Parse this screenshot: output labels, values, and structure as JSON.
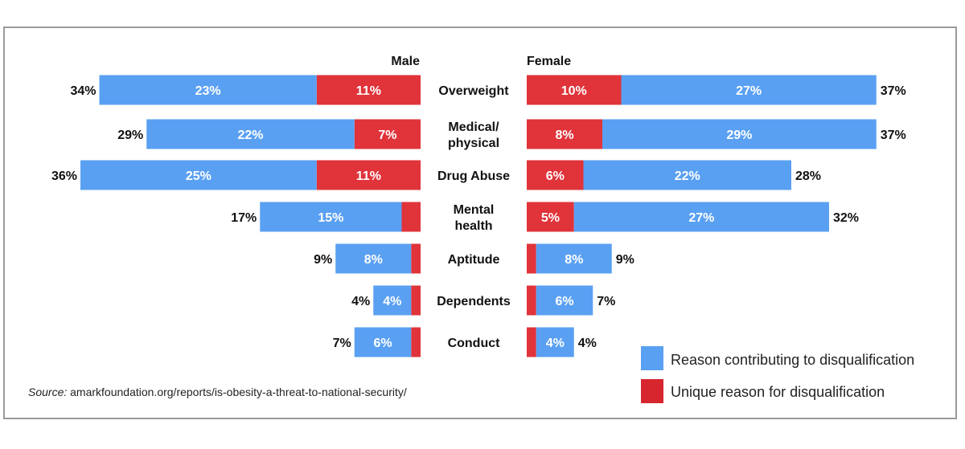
{
  "chart_data": {
    "type": "bar",
    "categories": [
      "Overweight",
      "Medical/ physical",
      "Drug Abuse",
      "Mental health",
      "Aptitude",
      "Dependents",
      "Conduct"
    ],
    "category_lines": [
      [
        "Overweight"
      ],
      [
        "Medical/",
        "physical"
      ],
      [
        "Drug Abuse"
      ],
      [
        "Mental",
        "health"
      ],
      [
        "Aptitude"
      ],
      [
        "Dependents"
      ],
      [
        "Conduct"
      ]
    ],
    "groups": [
      {
        "name": "Male",
        "totals": [
          34,
          29,
          36,
          17,
          9,
          4,
          7
        ],
        "total_labels": [
          "34%",
          "29%",
          "36%",
          "17%",
          "9%",
          "4%",
          "7%"
        ],
        "series": [
          {
            "name": "Reason contributing to disqualification",
            "values": [
              23,
              22,
              25,
              15,
              8,
              4,
              6
            ],
            "labels": [
              "23%",
              "22%",
              "25%",
              "15%",
              "8%",
              "4%",
              "6%"
            ]
          },
          {
            "name": "Unique reason for disqualification",
            "values": [
              11,
              7,
              11,
              2,
              1,
              1,
              1
            ],
            "labels": [
              "11%",
              "7%",
              "11%",
              "",
              "",
              "",
              ""
            ]
          }
        ]
      },
      {
        "name": "Female",
        "totals": [
          37,
          37,
          28,
          32,
          9,
          7,
          4
        ],
        "total_labels": [
          "37%",
          "37%",
          "28%",
          "32%",
          "9%",
          "7%",
          "4%"
        ],
        "series": [
          {
            "name": "Reason contributing to disqualification",
            "values": [
              27,
              29,
              22,
              27,
              8,
              6,
              4
            ],
            "labels": [
              "27%",
              "29%",
              "22%",
              "27%",
              "8%",
              "6%",
              "4%"
            ]
          },
          {
            "name": "Unique reason for disqualification",
            "values": [
              10,
              8,
              6,
              5,
              1,
              1,
              1
            ],
            "labels": [
              "10%",
              "8%",
              "6%",
              "5%",
              "",
              "",
              ""
            ]
          }
        ]
      }
    ],
    "legend": {
      "placement": "bottom-right",
      "items": [
        {
          "label": "Reason contributing to disqualification",
          "color": "#5aa0f2"
        },
        {
          "label": "Unique reason for disqualification",
          "color": "#d7262e"
        }
      ]
    },
    "colors": {
      "contributing": "#5aa0f2",
      "unique": "#e0333a"
    }
  },
  "source": {
    "prefix": "Source:",
    "text": "amarkfoundation.org/reports/is-obesity-a-threat-to-national-security/"
  }
}
